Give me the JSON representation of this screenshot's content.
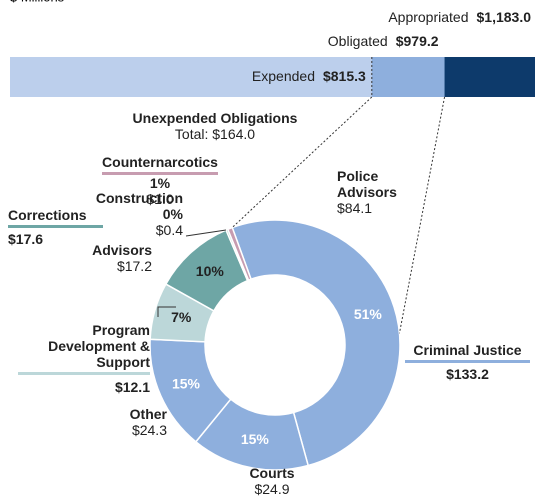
{
  "chart_data": [
    {
      "type": "bar",
      "title": "$ Millions",
      "categories": [
        "Appropriated",
        "Obligated",
        "Expended"
      ],
      "values": [
        1183.0,
        979.2,
        815.3
      ],
      "value_labels": [
        "$1,183.0",
        "$979.2",
        "$815.3"
      ],
      "colors": [
        "#0d3a6b",
        "#8eafdd",
        "#bccfec"
      ],
      "xlim": [
        0,
        1183.0
      ]
    },
    {
      "type": "donut",
      "title": "Unexpended Obligations",
      "subtitle": "Total: $164.0",
      "categories": [
        "Police Advisors",
        "Courts",
        "Other",
        "Program Development & Support",
        "Advisors",
        "Construction",
        "Counternarcotics"
      ],
      "values": [
        84.1,
        24.9,
        24.3,
        12.1,
        17.2,
        0.4,
        1.0
      ],
      "value_labels": [
        "$84.1",
        "$24.9",
        "$24.3",
        "$12.1",
        "$17.2",
        "$0.4",
        "$1.0"
      ],
      "percent_values": [
        51,
        15,
        15,
        7,
        10,
        0,
        1
      ],
      "percent_labels": [
        "51%",
        "15%",
        "15%",
        "7%",
        "10%",
        "0%",
        "1%"
      ],
      "colors": [
        "#8eafdd",
        "#8eafdd",
        "#8eafdd",
        "#bcd7d9",
        "#6ea6a5",
        "#9cc5c4",
        "#c79cb0"
      ],
      "groups": [
        {
          "name": "Corrections",
          "value": 17.6,
          "value_label": "$17.6",
          "color": "#6ea6a5"
        },
        {
          "name": "Criminal Justice",
          "value": 133.2,
          "value_label": "$133.2",
          "color": "#8eafdd"
        }
      ]
    }
  ]
}
